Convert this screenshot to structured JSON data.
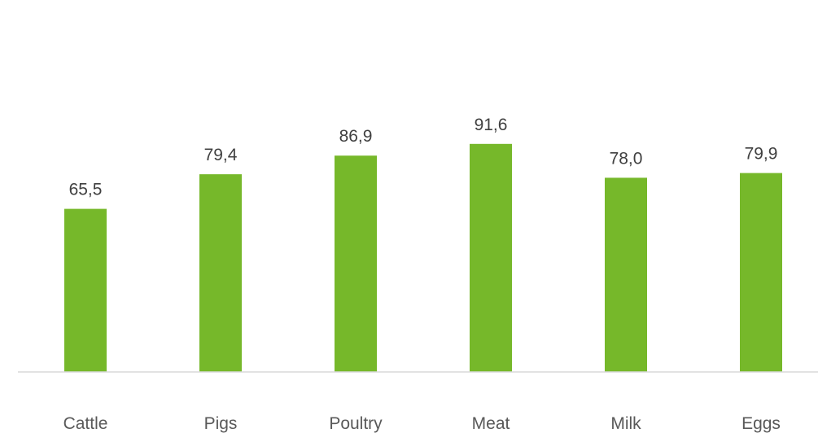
{
  "chart_data": {
    "type": "bar",
    "categories": [
      "Cattle",
      "Pigs",
      "Poultry",
      "Meat",
      "Milk",
      "Eggs"
    ],
    "values": [
      65.5,
      79.4,
      86.9,
      91.6,
      78.0,
      79.9
    ],
    "value_labels": [
      "65,5",
      "79,4",
      "86,9",
      "91,6",
      "78,0",
      "79,9"
    ],
    "title": "",
    "xlabel": "",
    "ylabel": "",
    "ylim": [
      0,
      100
    ],
    "grid": false,
    "legend": "none",
    "colors": {
      "bar": "#76b82a",
      "axis": "#d9d9d9",
      "value_text": "#404040",
      "category_text": "#595959"
    }
  }
}
